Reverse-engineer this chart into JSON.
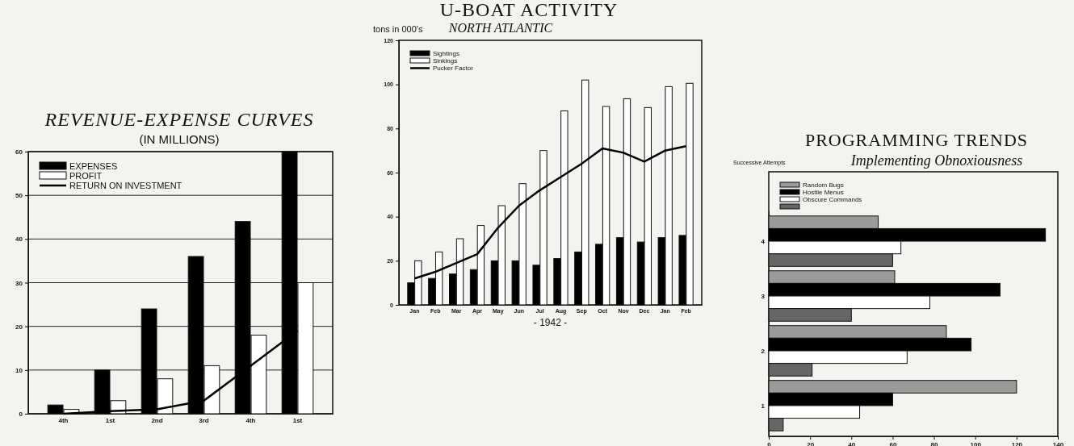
{
  "chart_data": [
    {
      "type": "bar",
      "title": "REVENUE-EXPENSE CURVES",
      "subtitle": "(IN MILLIONS)",
      "categories": [
        "4th",
        "1st",
        "2nd",
        "3rd",
        "4th",
        "1st"
      ],
      "ylim": [
        0,
        60
      ],
      "yticks": [
        0,
        10,
        20,
        30,
        40,
        50,
        60
      ],
      "grid": "y",
      "legend": "top left",
      "series": [
        {
          "name": "EXPENSES",
          "color": "#000000",
          "values": [
            2,
            10,
            24,
            36,
            44,
            60
          ]
        },
        {
          "name": "PROFIT",
          "color": "#ffffff",
          "values": [
            1,
            3,
            8,
            11,
            18,
            30
          ]
        },
        {
          "name": "RETURN ON INVESTMENT",
          "type": "line",
          "color": "#000000",
          "values": [
            0,
            0.6,
            1,
            3,
            11,
            19
          ]
        }
      ]
    },
    {
      "type": "bar",
      "title": "U-BOAT ACTIVITY",
      "subtitle": "NORTH ATLANTIC",
      "ylabel": "tons in 000's",
      "xlabel": "- 1942 -",
      "categories": [
        "Jan",
        "Feb",
        "Mar",
        "Apr",
        "May",
        "Jun",
        "Jul",
        "Aug",
        "Sep",
        "Oct",
        "Nov",
        "Dec",
        "Jan",
        "Feb"
      ],
      "ylim": [
        0,
        120
      ],
      "yticks": [
        0,
        20,
        40,
        60,
        80,
        100,
        120
      ],
      "legend": "top left",
      "series": [
        {
          "name": "Sightings",
          "color": "#000000",
          "values": [
            10,
            12,
            14,
            16,
            20,
            20,
            18,
            21,
            24,
            27.5,
            30.5,
            28.5,
            30.5,
            31.5
          ]
        },
        {
          "name": "Sinkings",
          "color": "#ffffff",
          "values": [
            20,
            24,
            30,
            36,
            45,
            55,
            70,
            88,
            102,
            90,
            93.5,
            89.5,
            99,
            100.5
          ]
        },
        {
          "name": "Pucker Factor",
          "type": "line",
          "color": "#000000",
          "values": [
            12,
            15,
            19,
            23,
            35,
            45,
            52,
            58,
            64,
            71,
            69,
            65,
            70,
            72
          ]
        }
      ]
    },
    {
      "type": "bar",
      "orientation": "horizontal",
      "title": "PROGRAMMING TRENDS",
      "subtitle": "Implementing Obnoxiousness",
      "ylabel": "Successive Attempts",
      "categories": [
        "4",
        "3",
        "2",
        "1"
      ],
      "xlim": [
        0,
        140
      ],
      "xticks": [
        0,
        20,
        40,
        60,
        80,
        100,
        120,
        140
      ],
      "legend": "top left",
      "series": [
        {
          "name": "Random Bugs",
          "color": "#9a9a9a",
          "values": [
            53,
            61,
            86,
            120
          ]
        },
        {
          "name": "Hostile Menus",
          "color": "#000000",
          "values": [
            134,
            112,
            98,
            60
          ]
        },
        {
          "name": "Obscure Commands",
          "color": "#ffffff",
          "values": [
            64,
            78,
            67,
            44
          ]
        },
        {
          "color": "#666666",
          "values": [
            60,
            40,
            21,
            7
          ]
        }
      ]
    }
  ]
}
